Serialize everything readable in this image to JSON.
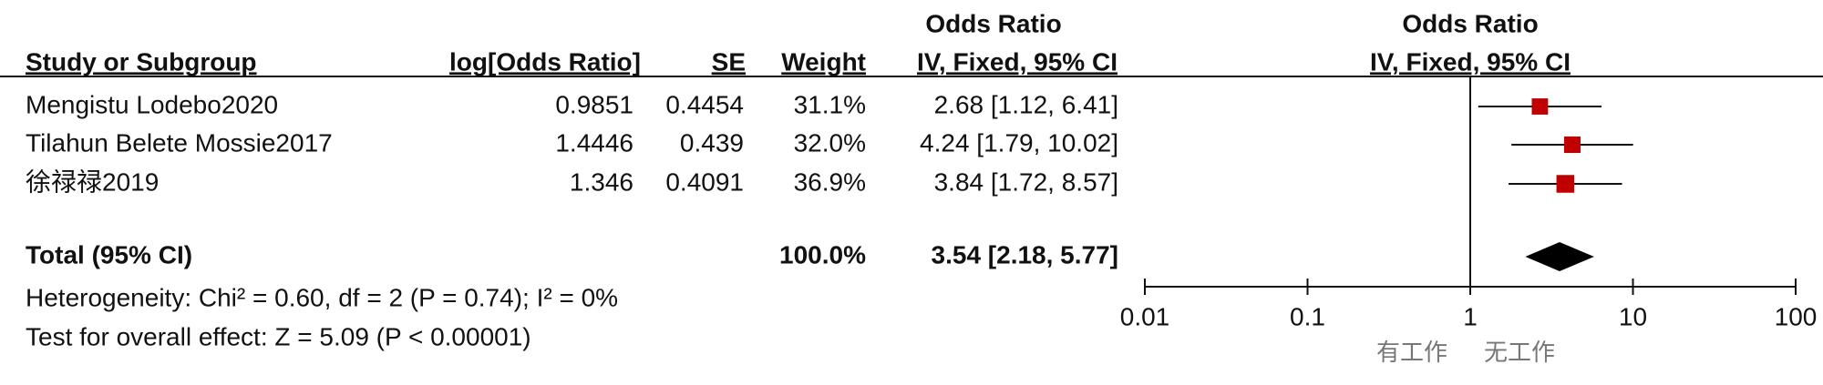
{
  "chart_data": {
    "type": "forest",
    "headers": {
      "group_title": "Odds Ratio",
      "study": "Study or Subgroup",
      "log_or": "log[Odds Ratio]",
      "se": "SE",
      "weight": "Weight",
      "ci": "IV, Fixed, 95% CI",
      "plot_title": "Odds Ratio",
      "plot_subtitle": "IV, Fixed, 95% CI"
    },
    "studies": [
      {
        "name": "Mengistu Lodebo2020",
        "log_or": 0.9851,
        "se": 0.4454,
        "weight": 31.1,
        "weight_label": "31.1%",
        "or": 2.68,
        "ci": [
          1.12,
          6.41
        ],
        "ci_label": "2.68 [1.12, 6.41]"
      },
      {
        "name": "Tilahun Belete Mossie2017",
        "log_or": 1.4446,
        "se": 0.439,
        "weight": 32.0,
        "weight_label": "32.0%",
        "or": 4.24,
        "ci": [
          1.79,
          10.02
        ],
        "ci_label": "4.24 [1.79, 10.02]"
      },
      {
        "name": "徐禄禄2019",
        "log_or": 1.346,
        "se": 0.4091,
        "weight": 36.9,
        "weight_label": "36.9%",
        "or": 3.84,
        "ci": [
          1.72,
          8.57
        ],
        "ci_label": "3.84 [1.72, 8.57]"
      }
    ],
    "total": {
      "name": "Total (95% CI)",
      "weight": 100.0,
      "weight_label": "100.0%",
      "or": 3.54,
      "ci": [
        2.18,
        5.77
      ],
      "ci_label": "3.54 [2.18, 5.77]"
    },
    "heterogeneity": "Heterogeneity: Chi² = 0.60, df = 2 (P = 0.74); I² = 0%",
    "overall_effect": "Test for overall effect: Z = 5.09 (P < 0.00001)",
    "xscale": "log",
    "xlim": [
      0.01,
      100
    ],
    "xticks": [
      0.01,
      0.1,
      1,
      10,
      100
    ],
    "reference": 1,
    "favours": [
      "有工作",
      "无工作"
    ],
    "color": "#c00000"
  }
}
